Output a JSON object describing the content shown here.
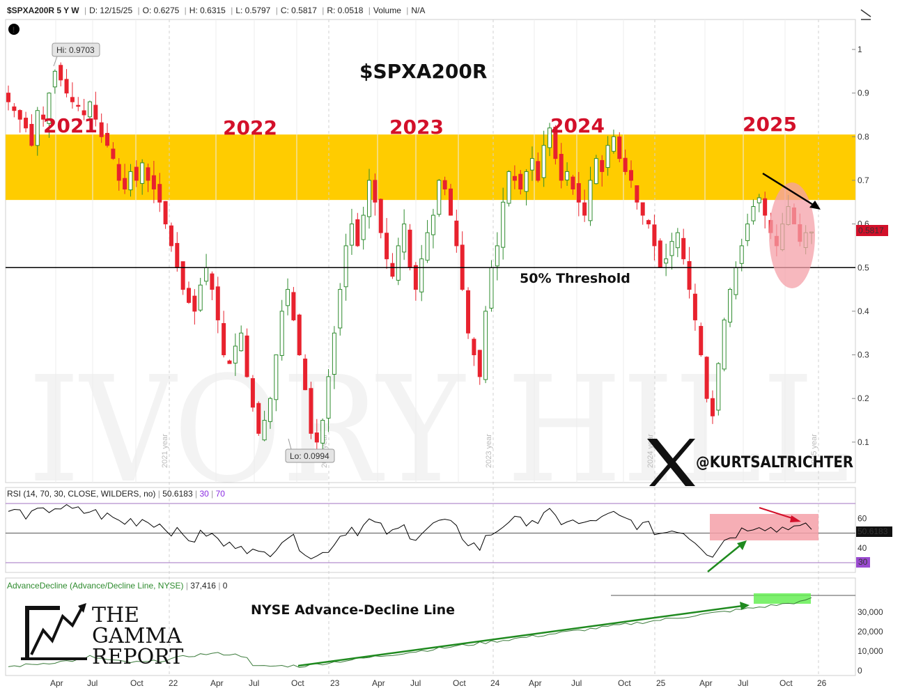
{
  "header": {
    "symbol": "$SPXA200R 5 Y W",
    "date": "D: 12/15/25",
    "open": "O: 0.6275",
    "high": "H: 0.6315",
    "low": "L: 0.5797",
    "close": "C: 0.5817",
    "range": "R: 0.0518",
    "volume_label": "Volume",
    "volume_value": "N/A"
  },
  "main_chart": {
    "title": "$SPXA200R",
    "hi_callout": "Hi: 0.9703",
    "lo_callout": "Lo: 0.0994",
    "last_price": "0.5817",
    "threshold_label": "50% Threshold",
    "y_ticks": [
      "1",
      "0.9",
      "0.8",
      "0.7",
      "0.6",
      "0.5",
      "0.4",
      "0.3",
      "0.2",
      "0.1"
    ],
    "year_labels": [
      "2021",
      "2022",
      "2023",
      "2024",
      "2025"
    ],
    "vertical_year_labels": [
      "2021 year",
      "2022 year",
      "2023 year",
      "2024 year",
      "2025 year"
    ],
    "watermark": "IVORY HILL",
    "handle": "@KURTSALTRICHTER",
    "colors": {
      "up": "#2e8b2e",
      "down": "#e8222e",
      "zone": "#ffcc00",
      "highlight": "#f4a0a8"
    }
  },
  "rsi_panel": {
    "label": "RSI (14, 70, 30, CLOSE, WILDERS, no)",
    "value": "50.6183",
    "lower": "30",
    "upper": "70",
    "y_ticks": [
      "60",
      "40"
    ],
    "value_tag": "50.6183",
    "lower_tag": "30"
  },
  "ad_panel": {
    "label": "AdvanceDecline (Advance/Decline Line, NYSE)",
    "value": "37,416",
    "zero": "0",
    "title": "NYSE Advance-Decline Line",
    "y_ticks": [
      "30,000",
      "20,000",
      "10,000",
      "0"
    ],
    "logo_lines": [
      "THE",
      "GAMMA",
      "REPORT"
    ]
  },
  "x_axis": {
    "labels": [
      "Apr",
      "Jul",
      "Oct",
      "22",
      "Apr",
      "Jul",
      "Oct",
      "23",
      "Apr",
      "Jul",
      "Oct",
      "24",
      "Apr",
      "Jul",
      "Oct",
      "25",
      "Apr",
      "Jul",
      "Oct",
      "26"
    ]
  },
  "chart_data": {
    "type": "candlestick",
    "title": "$SPXA200R",
    "timeframe": "5 Y W",
    "ylim": [
      0.05,
      1.05
    ],
    "series": [
      {
        "name": "$SPXA200R",
        "last": 0.5817,
        "high": 0.9703,
        "low": 0.0994
      },
      {
        "name": "RSI (14, 70, 30, CLOSE, WILDERS, no)",
        "last": 50.6183
      },
      {
        "name": "AdvanceDecline (Advance/Decline Line, NYSE)",
        "last": 37416
      }
    ],
    "approx_weekly_close": [
      0.88,
      0.86,
      0.84,
      0.82,
      0.78,
      0.86,
      0.84,
      0.9,
      0.95,
      0.93,
      0.9,
      0.88,
      0.87,
      0.85,
      0.88,
      0.84,
      0.8,
      0.78,
      0.75,
      0.7,
      0.68,
      0.72,
      0.7,
      0.74,
      0.7,
      0.68,
      0.65,
      0.6,
      0.55,
      0.5,
      0.45,
      0.42,
      0.4,
      0.46,
      0.5,
      0.45,
      0.38,
      0.3,
      0.28,
      0.32,
      0.35,
      0.25,
      0.18,
      0.12,
      0.15,
      0.2,
      0.3,
      0.4,
      0.45,
      0.38,
      0.3,
      0.22,
      0.12,
      0.1,
      0.15,
      0.25,
      0.35,
      0.45,
      0.55,
      0.6,
      0.55,
      0.62,
      0.7,
      0.65,
      0.58,
      0.52,
      0.48,
      0.55,
      0.6,
      0.5,
      0.45,
      0.52,
      0.58,
      0.62,
      0.7,
      0.68,
      0.62,
      0.55,
      0.45,
      0.35,
      0.3,
      0.25,
      0.4,
      0.5,
      0.55,
      0.65,
      0.72,
      0.7,
      0.68,
      0.72,
      0.75,
      0.7,
      0.78,
      0.82,
      0.75,
      0.7,
      0.72,
      0.68,
      0.65,
      0.62,
      0.7,
      0.75,
      0.72,
      0.78,
      0.8,
      0.75,
      0.72,
      0.7,
      0.65,
      0.62,
      0.6,
      0.55,
      0.5,
      0.52,
      0.56,
      0.58,
      0.52,
      0.45,
      0.38,
      0.3,
      0.2,
      0.16,
      0.28,
      0.38,
      0.45,
      0.5,
      0.55,
      0.6,
      0.64,
      0.66,
      0.62,
      0.58,
      0.55,
      0.6,
      0.64,
      0.6,
      0.56,
      0.58,
      0.5817
    ],
    "levels": [
      {
        "name": "50% Threshold",
        "value": 0.5
      }
    ],
    "zones": [
      {
        "from": 0.655,
        "to": 0.805
      }
    ],
    "x_ticks": [
      "Apr",
      "Jul",
      "Oct",
      "22",
      "Apr",
      "Jul",
      "Oct",
      "23",
      "Apr",
      "Jul",
      "Oct",
      "24",
      "Apr",
      "Jul",
      "Oct",
      "25",
      "Apr",
      "Jul",
      "Oct",
      "26"
    ]
  }
}
